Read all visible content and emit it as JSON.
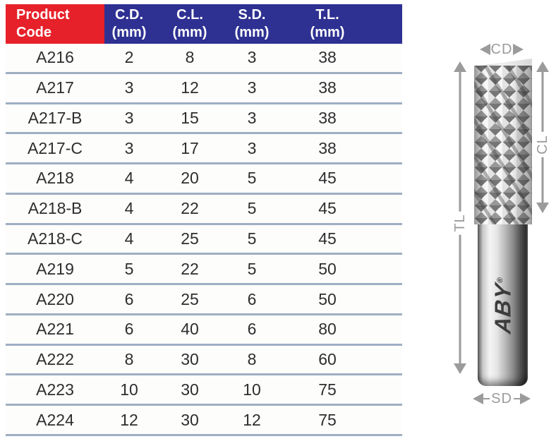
{
  "header": {
    "product": {
      "line1": "Product",
      "line2": "Code"
    },
    "columns": [
      {
        "abbr": "C.D.",
        "unit": "(mm)"
      },
      {
        "abbr": "C.L.",
        "unit": "(mm)"
      },
      {
        "abbr": "S.D.",
        "unit": "(mm)"
      },
      {
        "abbr": "T.L.",
        "unit": "(mm)"
      }
    ]
  },
  "table": {
    "rows": [
      {
        "code": "A216",
        "cd": "2",
        "cl": "8",
        "sd": "3",
        "tl": "38"
      },
      {
        "code": "A217",
        "cd": "3",
        "cl": "12",
        "sd": "3",
        "tl": "38"
      },
      {
        "code": "A217-B",
        "cd": "3",
        "cl": "15",
        "sd": "3",
        "tl": "38"
      },
      {
        "code": "A217-C",
        "cd": "3",
        "cl": "17",
        "sd": "3",
        "tl": "38"
      },
      {
        "code": "A218",
        "cd": "4",
        "cl": "20",
        "sd": "5",
        "tl": "45"
      },
      {
        "code": "A218-B",
        "cd": "4",
        "cl": "22",
        "sd": "5",
        "tl": "45"
      },
      {
        "code": "A218-C",
        "cd": "4",
        "cl": "25",
        "sd": "5",
        "tl": "45"
      },
      {
        "code": "A219",
        "cd": "5",
        "cl": "22",
        "sd": "5",
        "tl": "50"
      },
      {
        "code": "A220",
        "cd": "6",
        "cl": "25",
        "sd": "6",
        "tl": "50"
      },
      {
        "code": "A221",
        "cd": "6",
        "cl": "40",
        "sd": "6",
        "tl": "80"
      },
      {
        "code": "A222",
        "cd": "8",
        "cl": "30",
        "sd": "8",
        "tl": "60"
      },
      {
        "code": "A223",
        "cd": "10",
        "cl": "30",
        "sd": "10",
        "tl": "75"
      },
      {
        "code": "A224",
        "cd": "12",
        "cl": "30",
        "sd": "12",
        "tl": "75"
      }
    ]
  },
  "diagram": {
    "cd_label": "CD",
    "cl_label": "CL",
    "tl_label": "TL",
    "sd_label": "SD",
    "brand_text": "ABY",
    "brand_mark": "®"
  },
  "colors": {
    "header_red": "#E62129",
    "header_blue": "#2E3192",
    "row_divider": "#9FAEC2",
    "dimension_gray": "#9B9B9B",
    "text_dark": "#2E2E2E"
  }
}
